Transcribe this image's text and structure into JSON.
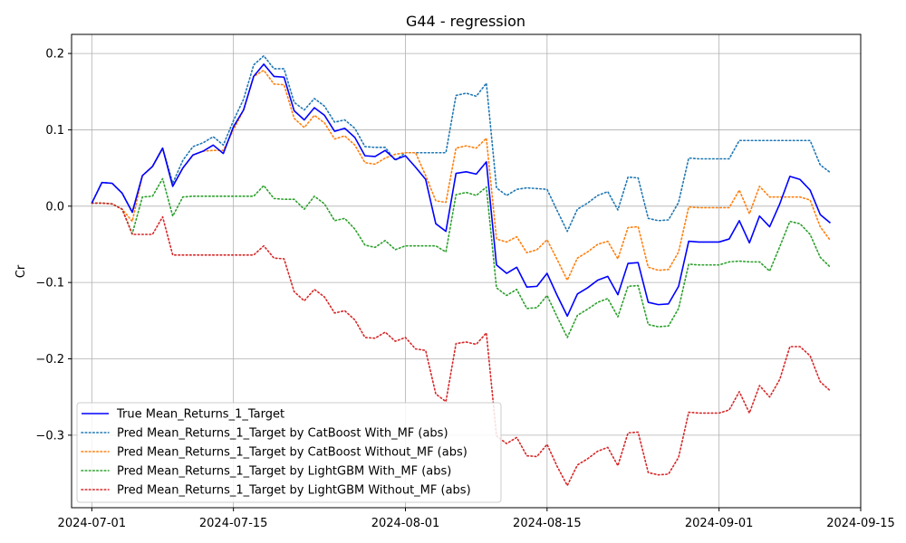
{
  "chart_data": {
    "type": "line",
    "title": "G44 - regression",
    "xlabel": "",
    "ylabel": "Cr",
    "xlim": [
      "2024-06-29",
      "2024-09-15"
    ],
    "ylim": [
      -0.395,
      0.225
    ],
    "grid": true,
    "legend_position": "lower-left",
    "x_ticks": [
      "2024-07-01",
      "2024-07-15",
      "2024-08-01",
      "2024-08-15",
      "2024-09-01",
      "2024-09-15"
    ],
    "y_ticks": [
      0.2,
      0.1,
      0.0,
      -0.1,
      -0.2,
      -0.3
    ],
    "y_tick_labels": [
      "0.2",
      "0.1",
      "0.0",
      "−0.1",
      "−0.2",
      "−0.3"
    ],
    "x": [
      "2024-07-01",
      "2024-07-02",
      "2024-07-03",
      "2024-07-04",
      "2024-07-05",
      "2024-07-06",
      "2024-07-07",
      "2024-07-08",
      "2024-07-09",
      "2024-07-10",
      "2024-07-11",
      "2024-07-12",
      "2024-07-13",
      "2024-07-14",
      "2024-07-15",
      "2024-07-16",
      "2024-07-17",
      "2024-07-18",
      "2024-07-19",
      "2024-07-20",
      "2024-07-21",
      "2024-07-22",
      "2024-07-23",
      "2024-07-24",
      "2024-07-25",
      "2024-07-26",
      "2024-07-27",
      "2024-07-28",
      "2024-07-29",
      "2024-07-30",
      "2024-07-31",
      "2024-08-01",
      "2024-08-02",
      "2024-08-03",
      "2024-08-04",
      "2024-08-05",
      "2024-08-06",
      "2024-08-07",
      "2024-08-08",
      "2024-08-09",
      "2024-08-10",
      "2024-08-11",
      "2024-08-12",
      "2024-08-13",
      "2024-08-14",
      "2024-08-15",
      "2024-08-16",
      "2024-08-17",
      "2024-08-18",
      "2024-08-19",
      "2024-08-20",
      "2024-08-21",
      "2024-08-22",
      "2024-08-23",
      "2024-08-24",
      "2024-08-25",
      "2024-08-26",
      "2024-08-27",
      "2024-08-28",
      "2024-08-29",
      "2024-08-30",
      "2024-08-31",
      "2024-09-01",
      "2024-09-02",
      "2024-09-03",
      "2024-09-04",
      "2024-09-05",
      "2024-09-06",
      "2024-09-07",
      "2024-09-08",
      "2024-09-09",
      "2024-09-10",
      "2024-09-11",
      "2024-09-12"
    ],
    "series": [
      {
        "name": "True Mean_Returns_1_Target",
        "color": "#0000ff",
        "style": "solid",
        "values": [
          0.004,
          0.031,
          0.03,
          0.017,
          -0.008,
          0.04,
          0.052,
          0.076,
          0.026,
          0.05,
          0.067,
          0.072,
          0.08,
          0.069,
          0.104,
          0.126,
          0.17,
          0.186,
          0.17,
          0.169,
          0.125,
          0.113,
          0.129,
          0.119,
          0.098,
          0.102,
          0.09,
          0.066,
          0.065,
          0.073,
          0.061,
          0.066,
          0.051,
          0.035,
          -0.023,
          -0.033,
          0.043,
          0.045,
          0.042,
          0.058,
          -0.077,
          -0.088,
          -0.08,
          -0.106,
          -0.105,
          -0.088,
          -0.117,
          -0.144,
          -0.115,
          -0.107,
          -0.097,
          -0.092,
          -0.116,
          -0.075,
          -0.074,
          -0.126,
          -0.129,
          -0.128,
          -0.105,
          -0.046,
          -0.047,
          -0.047,
          -0.047,
          -0.043,
          -0.019,
          -0.048,
          -0.013,
          -0.027,
          0.003,
          0.039,
          0.035,
          0.021,
          -0.011,
          -0.022
        ]
      },
      {
        "name": "Pred Mean_Returns_1_Target by CatBoost With_MF (abs)",
        "color": "#1f77b4",
        "style": "dotted",
        "values": [
          0.004,
          0.031,
          0.03,
          0.017,
          -0.008,
          0.04,
          0.052,
          0.076,
          0.03,
          0.06,
          0.078,
          0.083,
          0.091,
          0.08,
          0.112,
          0.14,
          0.185,
          0.197,
          0.18,
          0.18,
          0.136,
          0.126,
          0.141,
          0.131,
          0.11,
          0.113,
          0.102,
          0.078,
          0.077,
          0.077,
          0.06,
          0.07,
          0.07,
          0.07,
          0.07,
          0.07,
          0.145,
          0.148,
          0.144,
          0.161,
          0.024,
          0.014,
          0.022,
          0.024,
          0.023,
          0.022,
          -0.006,
          -0.033,
          -0.004,
          0.004,
          0.014,
          0.019,
          -0.005,
          0.038,
          0.037,
          -0.016,
          -0.019,
          -0.018,
          0.005,
          0.063,
          0.062,
          0.062,
          0.062,
          0.062,
          0.086,
          0.086,
          0.086,
          0.086,
          0.086,
          0.086,
          0.086,
          0.086,
          0.054,
          0.044
        ]
      },
      {
        "name": "Pred Mean_Returns_1_Target by CatBoost Without_MF (abs)",
        "color": "#ff7f0e",
        "style": "dotted",
        "values": [
          0.004,
          0.004,
          0.003,
          -0.004,
          -0.02,
          0.04,
          0.052,
          0.076,
          0.026,
          0.05,
          0.067,
          0.072,
          0.073,
          0.073,
          0.1,
          0.126,
          0.17,
          0.178,
          0.16,
          0.159,
          0.115,
          0.103,
          0.119,
          0.109,
          0.088,
          0.092,
          0.08,
          0.057,
          0.055,
          0.063,
          0.068,
          0.07,
          0.07,
          0.04,
          0.007,
          0.005,
          0.076,
          0.079,
          0.076,
          0.089,
          -0.043,
          -0.047,
          -0.04,
          -0.061,
          -0.057,
          -0.044,
          -0.07,
          -0.097,
          -0.068,
          -0.06,
          -0.05,
          -0.046,
          -0.069,
          -0.028,
          -0.027,
          -0.08,
          -0.084,
          -0.083,
          -0.06,
          -0.001,
          -0.002,
          -0.002,
          -0.002,
          -0.002,
          0.021,
          -0.01,
          0.026,
          0.012,
          0.012,
          0.012,
          0.012,
          0.008,
          -0.027,
          -0.045
        ]
      },
      {
        "name": "Pred Mean_Returns_1_Target by LightGBM With_MF (abs)",
        "color": "#2ca02c",
        "style": "dotted",
        "values": [
          0.004,
          0.004,
          0.003,
          -0.004,
          -0.036,
          0.012,
          0.013,
          0.036,
          -0.013,
          0.012,
          0.013,
          0.013,
          0.013,
          0.013,
          0.013,
          0.013,
          0.013,
          0.027,
          0.01,
          0.009,
          0.009,
          -0.004,
          0.013,
          0.003,
          -0.019,
          -0.016,
          -0.03,
          -0.051,
          -0.054,
          -0.045,
          -0.057,
          -0.052,
          -0.052,
          -0.052,
          -0.052,
          -0.06,
          0.015,
          0.018,
          0.014,
          0.025,
          -0.107,
          -0.117,
          -0.109,
          -0.134,
          -0.133,
          -0.117,
          -0.145,
          -0.172,
          -0.143,
          -0.135,
          -0.126,
          -0.121,
          -0.145,
          -0.105,
          -0.104,
          -0.155,
          -0.158,
          -0.157,
          -0.134,
          -0.076,
          -0.077,
          -0.077,
          -0.077,
          -0.073,
          -0.072,
          -0.073,
          -0.073,
          -0.085,
          -0.053,
          -0.02,
          -0.023,
          -0.037,
          -0.067,
          -0.08
        ]
      },
      {
        "name": "Pred Mean_Returns_1_Target by LightGBM Without_MF (abs)",
        "color": "#d62728",
        "style": "dotted",
        "values": [
          0.004,
          0.004,
          0.003,
          -0.004,
          -0.037,
          -0.037,
          -0.037,
          -0.014,
          -0.064,
          -0.064,
          -0.064,
          -0.064,
          -0.064,
          -0.064,
          -0.064,
          -0.064,
          -0.064,
          -0.052,
          -0.068,
          -0.069,
          -0.112,
          -0.124,
          -0.109,
          -0.119,
          -0.14,
          -0.137,
          -0.149,
          -0.172,
          -0.173,
          -0.165,
          -0.177,
          -0.172,
          -0.187,
          -0.189,
          -0.246,
          -0.256,
          -0.18,
          -0.178,
          -0.181,
          -0.166,
          -0.301,
          -0.311,
          -0.303,
          -0.327,
          -0.328,
          -0.312,
          -0.341,
          -0.366,
          -0.339,
          -0.331,
          -0.321,
          -0.316,
          -0.34,
          -0.297,
          -0.296,
          -0.349,
          -0.352,
          -0.351,
          -0.329,
          -0.27,
          -0.271,
          -0.271,
          -0.271,
          -0.267,
          -0.243,
          -0.271,
          -0.235,
          -0.25,
          -0.227,
          -0.184,
          -0.184,
          -0.196,
          -0.23,
          -0.242
        ]
      }
    ]
  }
}
